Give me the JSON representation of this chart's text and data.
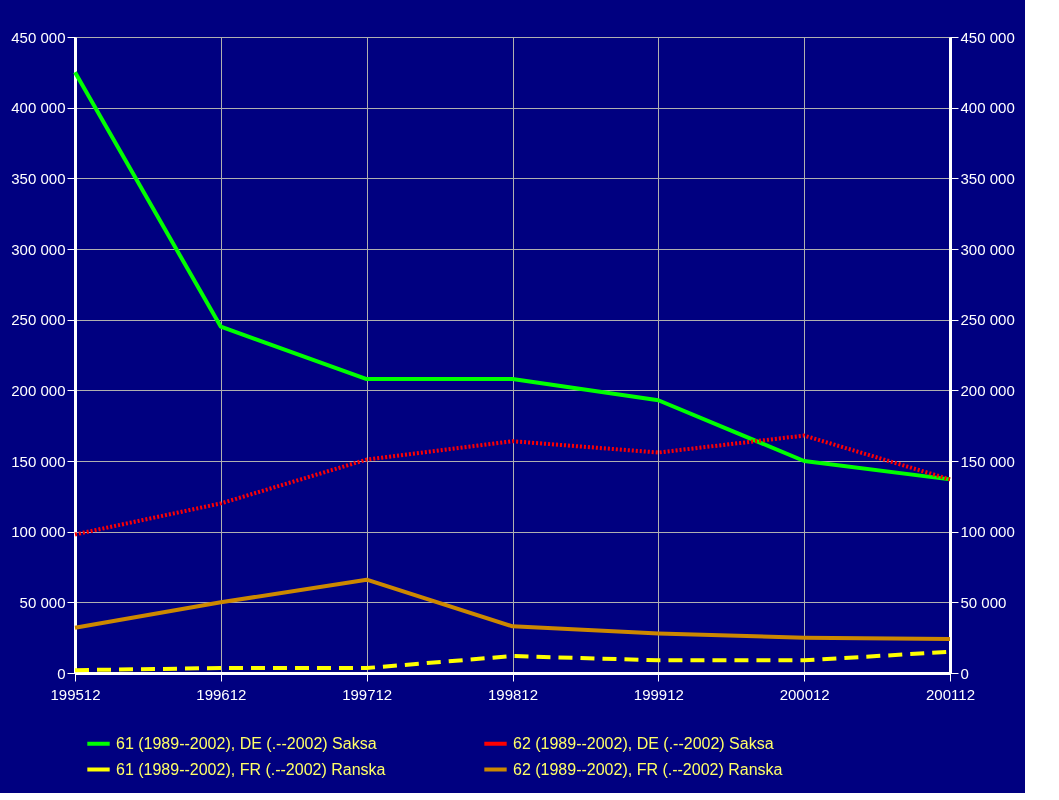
{
  "chart_data": {
    "type": "line",
    "categories": [
      "199512",
      "199612",
      "199712",
      "199812",
      "199912",
      "200012",
      "200112"
    ],
    "series": [
      {
        "name": "61 (1989--2002), DE (.--2002) Saksa",
        "color": "#00ff00",
        "line_style": "solid",
        "values": [
          425000,
          245000,
          208000,
          208000,
          193000,
          150000,
          137000
        ]
      },
      {
        "name": "62 (1989--2002), DE (.--2002) Saksa",
        "color": "#ff0000",
        "line_style": "dotted",
        "values": [
          98000,
          120000,
          151000,
          164000,
          156000,
          168000,
          137000
        ]
      },
      {
        "name": "61 (1989--2002), FR (.--2002) Ranska",
        "color": "#ffff00",
        "line_style": "dashed",
        "values": [
          2000,
          3500,
          3500,
          12000,
          9000,
          9000,
          15000
        ]
      },
      {
        "name": "62 (1989--2002), FR (.--2002) Ranska",
        "color": "#cc8800",
        "line_style": "solid",
        "values": [
          32000,
          50000,
          66000,
          33000,
          28000,
          25000,
          24000
        ]
      }
    ],
    "ylim": [
      0,
      450000
    ],
    "yticks": [
      {
        "value": 0,
        "label": "0"
      },
      {
        "value": 50000,
        "label": "50 000"
      },
      {
        "value": 100000,
        "label": "100 000"
      },
      {
        "value": 150000,
        "label": "150 000"
      },
      {
        "value": 200000,
        "label": "200 000"
      },
      {
        "value": 250000,
        "label": "250 000"
      },
      {
        "value": 300000,
        "label": "300 000"
      },
      {
        "value": 350000,
        "label": "350 000"
      },
      {
        "value": 400000,
        "label": "400 000"
      },
      {
        "value": 450000,
        "label": "450 000"
      }
    ],
    "y2lim": [
      0,
      450000
    ],
    "y2ticks": [
      {
        "value": 0,
        "label": "0"
      },
      {
        "value": 50000,
        "label": "50 000"
      },
      {
        "value": 100000,
        "label": "100 000"
      },
      {
        "value": 150000,
        "label": "150 000"
      },
      {
        "value": 200000,
        "label": "200 000"
      },
      {
        "value": 250000,
        "label": "250 000"
      },
      {
        "value": 300000,
        "label": "300 000"
      },
      {
        "value": 350000,
        "label": "350 000"
      },
      {
        "value": 400000,
        "label": "400 000"
      },
      {
        "value": 450000,
        "label": "450 000"
      }
    ],
    "grid": true,
    "legend": "bottom"
  }
}
